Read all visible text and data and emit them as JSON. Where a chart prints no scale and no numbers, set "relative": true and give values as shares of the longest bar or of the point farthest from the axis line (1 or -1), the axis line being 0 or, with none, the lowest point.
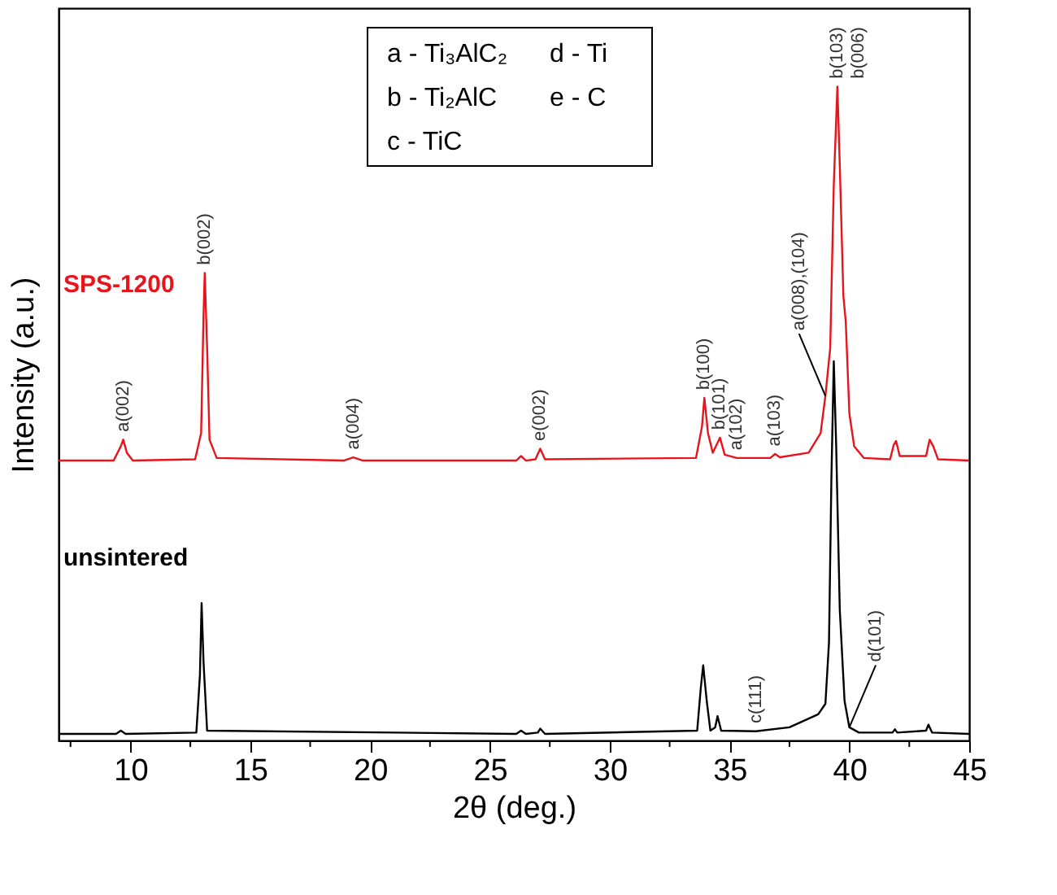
{
  "chart_data": {
    "type": "line",
    "relative": true,
    "xlabel": "2θ (deg.)",
    "ylabel": "Intensity (a.u.)",
    "xlim": [
      7,
      45
    ],
    "xticks": [
      {
        "value": 7.5,
        "label": null
      },
      10,
      {
        "value": 12.5,
        "label": null
      },
      15,
      {
        "value": 17.5,
        "label": null
      },
      20,
      {
        "value": 22.5,
        "label": null
      },
      25,
      {
        "value": 27.5,
        "label": null
      },
      30,
      {
        "value": 32.5,
        "label": null
      },
      35,
      {
        "value": 37.5,
        "label": null
      },
      40,
      {
        "value": 42.5,
        "label": null
      },
      45
    ],
    "grid": false,
    "line_style": "solid",
    "series": [
      {
        "name": "SPS-1200",
        "color": "#e8141c",
        "x": [
          7.0,
          9.3,
          9.6,
          9.7,
          9.85,
          10.1,
          12.7,
          12.95,
          13.05,
          13.1,
          13.2,
          13.3,
          13.6,
          18.9,
          19.3,
          19.7,
          26.1,
          26.3,
          26.5,
          26.9,
          27.1,
          27.3,
          33.6,
          33.85,
          33.95,
          34.1,
          34.3,
          34.6,
          34.8,
          35.3,
          36.7,
          36.9,
          37.1,
          38.3,
          38.8,
          39.0,
          39.2,
          39.35,
          39.5,
          39.6,
          39.75,
          39.85,
          40.0,
          40.2,
          40.6,
          41.7,
          41.85,
          41.95,
          42.1,
          43.2,
          43.35,
          43.5,
          43.7,
          45.0
        ],
        "values": [
          0.428,
          0.428,
          0.45,
          0.46,
          0.44,
          0.428,
          0.43,
          0.47,
          0.65,
          0.715,
          0.6,
          0.46,
          0.432,
          0.428,
          0.433,
          0.428,
          0.428,
          0.435,
          0.428,
          0.43,
          0.446,
          0.43,
          0.432,
          0.48,
          0.524,
          0.47,
          0.44,
          0.463,
          0.437,
          0.432,
          0.432,
          0.438,
          0.433,
          0.44,
          0.47,
          0.527,
          0.6,
          0.85,
          1.0,
          0.88,
          0.68,
          0.64,
          0.5,
          0.45,
          0.432,
          0.43,
          0.452,
          0.458,
          0.435,
          0.435,
          0.46,
          0.45,
          0.43,
          0.428
        ]
      },
      {
        "name": "unsintered",
        "color": "#000000",
        "x": [
          7.0,
          9.4,
          9.6,
          9.8,
          12.75,
          12.9,
          12.97,
          13.05,
          13.2,
          26.1,
          26.3,
          26.5,
          27.0,
          27.1,
          27.3,
          33.65,
          33.8,
          33.9,
          34.05,
          34.2,
          34.4,
          34.5,
          34.65,
          36.1,
          37.5,
          38.7,
          39.0,
          39.15,
          39.25,
          39.35,
          39.45,
          39.6,
          39.8,
          40.0,
          40.4,
          41.8,
          41.9,
          42.0,
          43.2,
          43.3,
          43.45,
          45.0
        ],
        "values": [
          0.01,
          0.01,
          0.015,
          0.01,
          0.012,
          0.1,
          0.21,
          0.12,
          0.015,
          0.01,
          0.015,
          0.01,
          0.012,
          0.018,
          0.01,
          0.015,
          0.08,
          0.115,
          0.06,
          0.015,
          0.02,
          0.037,
          0.015,
          0.014,
          0.02,
          0.04,
          0.056,
          0.15,
          0.4,
          0.58,
          0.45,
          0.2,
          0.06,
          0.02,
          0.012,
          0.012,
          0.017,
          0.012,
          0.015,
          0.024,
          0.012,
          0.01
        ]
      }
    ],
    "annotations": [
      "a - Ti₃AlC₂",
      "d - Ti",
      "b - Ti₂AlC",
      "e - C",
      "c - TiC",
      {
        "text": "a(002)",
        "x": 9.7,
        "y": 0.46
      },
      {
        "text": "b(002)",
        "x": 13.1,
        "y": 0.715
      },
      {
        "text": "a(004)",
        "x": 19.3,
        "y": 0.433
      },
      {
        "text": "e(002)",
        "x": 27.1,
        "y": 0.446
      },
      {
        "text": "b(100)",
        "x": 33.95,
        "y": 0.524
      },
      {
        "text": "b(101)",
        "x": 34.6,
        "y": 0.463
      },
      {
        "text": "a(102)",
        "x": 35.3,
        "y": 0.432
      },
      {
        "text": "a(103)",
        "x": 36.9,
        "y": 0.438
      },
      {
        "text": "a(008),(104)",
        "x": 39.0,
        "y": 0.527
      },
      {
        "text": "b(103)\nb(006)",
        "x": 39.5,
        "y": 1.0
      },
      {
        "text": "c(111)",
        "x": 36.1,
        "y": 0.014
      },
      {
        "text": "d(101)",
        "x": 40.0,
        "y": 0.02
      }
    ]
  }
}
